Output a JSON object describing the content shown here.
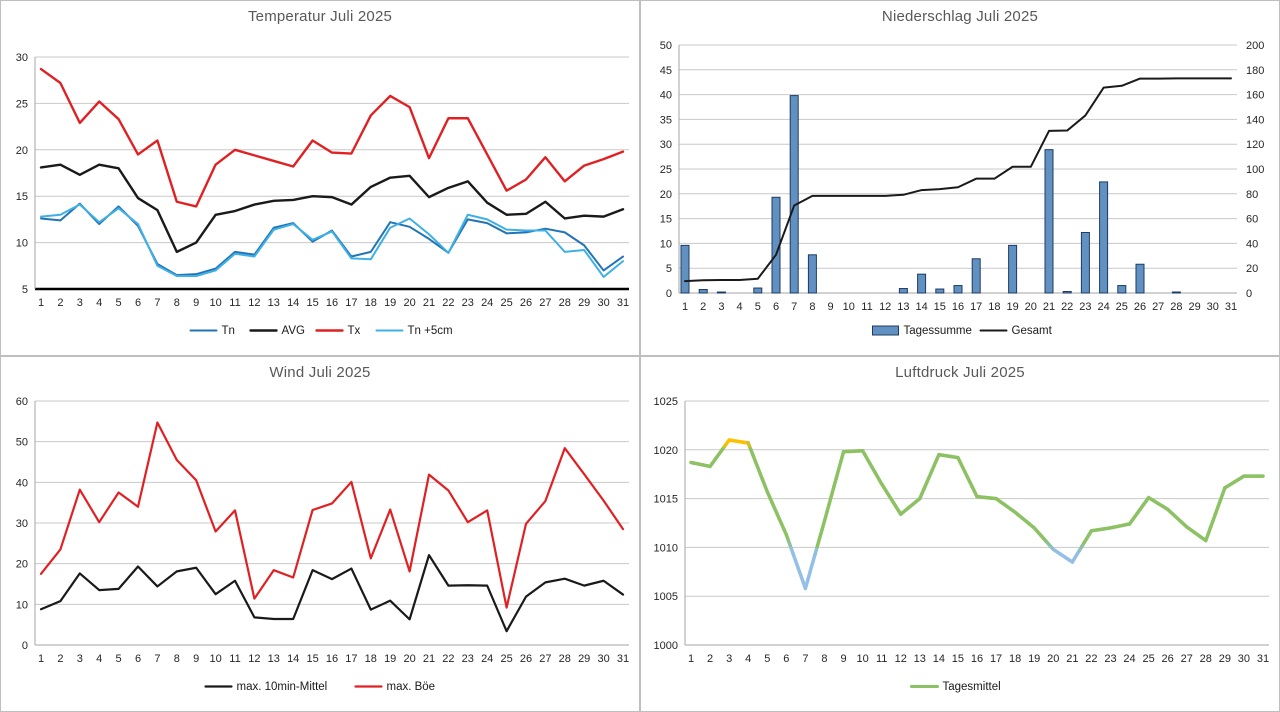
{
  "page": {
    "background": "#FFFFFF",
    "panel_border_color": "#BFBFBF",
    "title_color": "#595959",
    "grid_color": "#C9C9C9",
    "axis_line_color": "#A6A6A6",
    "tick_text_color": "#262626"
  },
  "days": [
    1,
    2,
    3,
    4,
    5,
    6,
    7,
    8,
    9,
    10,
    11,
    12,
    13,
    14,
    15,
    16,
    17,
    18,
    19,
    20,
    21,
    22,
    23,
    24,
    25,
    26,
    27,
    28,
    29,
    30,
    31
  ],
  "chart_data": [
    {
      "id": "temperatur",
      "type": "line",
      "title": "Temperatur Juli 2025",
      "xlabel": "",
      "ylabel": "",
      "y_axis": {
        "min": 5,
        "max": 30,
        "step": 5,
        "ticks": [
          5,
          10,
          15,
          20,
          25,
          30
        ]
      },
      "baseline": {
        "color": "#000000",
        "width": 2.5
      },
      "grid": true,
      "legend_position": "bottom",
      "series": [
        {
          "name": "Tn",
          "color": "#2374B6",
          "width": 2,
          "values": [
            12.6,
            12.4,
            14.2,
            12.0,
            13.9,
            11.8,
            7.7,
            6.5,
            6.6,
            7.2,
            9.0,
            8.7,
            11.6,
            12.1,
            10.1,
            11.3,
            8.5,
            9.0,
            12.2,
            11.7,
            10.4,
            8.9,
            12.5,
            12.1,
            11.0,
            11.1,
            11.5,
            11.1,
            9.7,
            7.0,
            8.5
          ]
        },
        {
          "name": "AVG",
          "color": "#1A1A1A",
          "width": 2.4,
          "values": [
            18.1,
            18.4,
            17.3,
            18.4,
            18.0,
            14.8,
            13.5,
            9.0,
            10.0,
            13.0,
            13.4,
            14.1,
            14.5,
            14.6,
            15.0,
            14.9,
            14.1,
            16.0,
            17.0,
            17.2,
            14.9,
            15.9,
            16.6,
            14.3,
            13.0,
            13.1,
            14.4,
            12.6,
            12.9,
            12.8,
            13.6
          ]
        },
        {
          "name": "Tx",
          "color": "#E02124",
          "width": 2.4,
          "values": [
            28.7,
            27.2,
            22.9,
            25.2,
            23.3,
            19.5,
            21.0,
            14.4,
            13.9,
            18.4,
            20.0,
            19.4,
            18.8,
            18.2,
            21.0,
            19.7,
            19.6,
            23.7,
            25.8,
            24.6,
            19.1,
            23.4,
            23.4,
            19.5,
            15.6,
            16.8,
            19.2,
            16.6,
            18.3,
            19.0,
            19.8
          ]
        },
        {
          "name": "Tn +5cm",
          "color": "#3FB0E4",
          "width": 2,
          "values": [
            12.8,
            13.0,
            14.1,
            12.2,
            13.7,
            12.0,
            7.5,
            6.4,
            6.4,
            7.0,
            8.8,
            8.5,
            11.4,
            12.0,
            10.3,
            11.2,
            8.3,
            8.2,
            11.6,
            12.6,
            10.9,
            8.9,
            13.0,
            12.5,
            11.4,
            11.3,
            11.3,
            9.0,
            9.2,
            6.3,
            8.0
          ]
        }
      ]
    },
    {
      "id": "niederschlag",
      "type": "bar-line",
      "title": "Niederschlag Juli 2025",
      "xlabel": "",
      "ylabel": "",
      "y_axis": {
        "min": 0,
        "max": 50,
        "step": 5,
        "ticks": [
          0,
          5,
          10,
          15,
          20,
          25,
          30,
          35,
          40,
          45,
          50
        ]
      },
      "y_right": {
        "min": 0,
        "max": 200,
        "step": 20,
        "ticks": [
          0,
          20,
          40,
          60,
          80,
          100,
          120,
          140,
          160,
          180,
          200
        ]
      },
      "grid": true,
      "legend_position": "bottom",
      "bars": {
        "name": "Tagessumme",
        "fill": "#6191C1",
        "stroke": "#1F3A63",
        "values": [
          9.6,
          0.7,
          0.2,
          0,
          1.0,
          19.3,
          39.8,
          7.7,
          0,
          0,
          0,
          0,
          0.9,
          3.8,
          0.8,
          1.5,
          6.9,
          0,
          9.6,
          0,
          28.9,
          0.3,
          12.2,
          22.4,
          1.5,
          5.8,
          0,
          0.2,
          0,
          0,
          0
        ]
      },
      "series": [
        {
          "name": "Gesamt",
          "color": "#1A1A1A",
          "width": 2,
          "axis": "right",
          "values": [
            9.6,
            10.3,
            10.5,
            10.5,
            11.5,
            30.8,
            70.6,
            78.3,
            78.3,
            78.3,
            78.3,
            78.3,
            79.2,
            83.0,
            83.8,
            85.3,
            92.2,
            92.2,
            101.8,
            101.8,
            130.7,
            131.0,
            143.2,
            165.6,
            167.1,
            172.9,
            172.9,
            173.1,
            173.1,
            173.1,
            173.1
          ]
        }
      ]
    },
    {
      "id": "wind",
      "type": "line",
      "title": "Wind Juli 2025",
      "xlabel": "",
      "ylabel": "",
      "y_axis": {
        "min": 0,
        "max": 60,
        "step": 10,
        "ticks": [
          0,
          10,
          20,
          30,
          40,
          50,
          60
        ]
      },
      "grid": true,
      "legend_position": "bottom",
      "series": [
        {
          "name": "max. 10min-Mittel",
          "color": "#1A1A1A",
          "width": 2.2,
          "values": [
            8.8,
            10.8,
            17.6,
            13.5,
            13.8,
            19.3,
            14.4,
            18.1,
            19.0,
            12.5,
            15.8,
            6.8,
            6.4,
            6.4,
            18.4,
            16.2,
            18.8,
            8.7,
            10.9,
            6.3,
            22.1,
            14.6,
            14.7,
            14.6,
            3.4,
            11.9,
            15.4,
            16.3,
            14.6,
            15.8,
            12.4
          ]
        },
        {
          "name": "max. Böe",
          "color": "#E02124",
          "width": 2.2,
          "values": [
            17.5,
            23.5,
            38.2,
            30.2,
            37.5,
            34.0,
            54.7,
            45.5,
            40.5,
            27.9,
            33.1,
            11.4,
            18.4,
            16.6,
            33.2,
            34.8,
            40.1,
            21.3,
            33.3,
            18.1,
            41.9,
            38.0,
            30.2,
            33.1,
            9.2,
            29.8,
            35.4,
            48.4,
            42.0,
            35.5,
            28.5
          ]
        }
      ]
    },
    {
      "id": "luftdruck",
      "type": "line",
      "title": "Luftdruck Juli 2025",
      "xlabel": "",
      "ylabel": "",
      "y_axis": {
        "min": 1000,
        "max": 1025,
        "step": 5,
        "ticks": [
          1000,
          1005,
          1010,
          1015,
          1020,
          1025
        ]
      },
      "grid": true,
      "left_axis_line": true,
      "legend_position": "bottom",
      "series": [
        {
          "name": "Tagesmittel",
          "color": "#8CC164",
          "width": 3.5,
          "gradient": {
            "color_mid": "#8CC164",
            "color_high": "#FFC000",
            "color_low": "#93BFE8",
            "high_start": 1020.2,
            "high_blend": 0.7,
            "low_start": 1010.5,
            "low_blend": 1.2
          },
          "values": [
            1018.7,
            1018.3,
            1021.0,
            1020.7,
            1015.7,
            1011.3,
            1005.8,
            1012.7,
            1019.8,
            1019.9,
            1016.5,
            1013.4,
            1015.0,
            1019.5,
            1019.2,
            1015.2,
            1015.0,
            1013.6,
            1012.0,
            1009.8,
            1008.5,
            1011.7,
            1012.0,
            1012.4,
            1015.1,
            1013.9,
            1012.1,
            1010.7,
            1016.1,
            1017.3,
            1017.3
          ]
        }
      ]
    }
  ]
}
